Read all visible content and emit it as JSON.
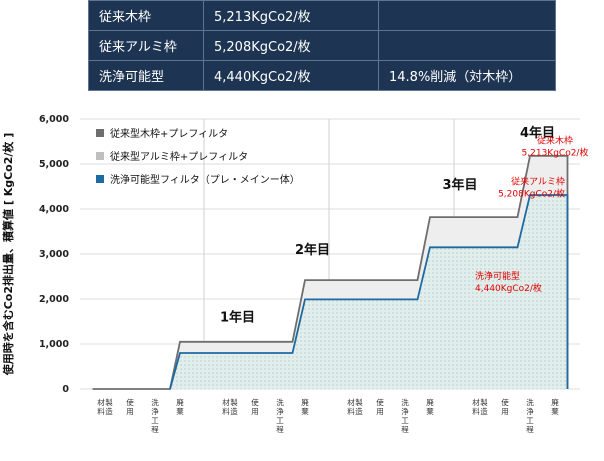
{
  "table": {
    "rows": [
      {
        "label": "従来木枠",
        "value": "5,213KgCo2/枚",
        "note": ""
      },
      {
        "label": "従来アルミ枠",
        "value": "5,208KgCo2/枚",
        "note": ""
      },
      {
        "label": "洗浄可能型",
        "value": "4,440KgCo2/枚",
        "note": "14.8%削減（対木枠）"
      }
    ]
  },
  "chart_data": {
    "type": "area",
    "ylabel": "使用時を含むCo2排出量、積算値 [ KgCo2/枚 ]",
    "ylim": [
      0,
      6000
    ],
    "y_ticks": [
      0,
      1000,
      2000,
      3000,
      4000,
      5000,
      6000
    ],
    "y_tick_labels": [
      "0",
      "1,000",
      "2,000",
      "3,000",
      "4,000",
      "5,000",
      "6,000"
    ],
    "grid": true,
    "legend_position": "top-left",
    "categories": [
      "材料\n製造",
      "使用",
      "洗浄工程",
      "廃棄",
      "材料\n製造",
      "使用",
      "洗浄工程",
      "廃棄",
      "材料\n製造",
      "使用",
      "洗浄工程",
      "廃棄",
      "材料\n製造",
      "使用",
      "洗浄工程",
      "廃棄"
    ],
    "year_labels": [
      "1年目",
      "2年目",
      "3年目",
      "4年目"
    ],
    "series": [
      {
        "name": "従来型木枠+プレフィルタ",
        "color": "#6e6e6e",
        "fill": "#eeeeee",
        "points": [
          [
            0.5,
            0
          ],
          [
            1.5,
            0
          ],
          [
            2.5,
            0
          ],
          [
            3.5,
            0
          ],
          [
            3.6,
            0
          ],
          [
            4.0,
            1050
          ],
          [
            5.5,
            1050
          ],
          [
            8.5,
            1050
          ],
          [
            9.0,
            2420
          ],
          [
            11.5,
            2420
          ],
          [
            13.5,
            2420
          ],
          [
            14.0,
            3820
          ],
          [
            17.5,
            3820
          ],
          [
            18.0,
            5180
          ],
          [
            19.5,
            5180
          ],
          [
            19.5,
            0
          ]
        ]
      },
      {
        "name": "従来型アルミ枠+プレフィルタ",
        "color": "#bfbfbf",
        "fill": "#eeeeee",
        "points": []
      },
      {
        "name": "洗浄可能型フィルタ（プレ・メインー体）",
        "color": "#1e6aa2",
        "fill": "#e1eeec",
        "points": [
          [
            3.6,
            0
          ],
          [
            4.0,
            800
          ],
          [
            8.5,
            800
          ],
          [
            9.0,
            1990
          ],
          [
            11.5,
            1990
          ],
          [
            13.5,
            1990
          ],
          [
            14.0,
            3150
          ],
          [
            17.5,
            3150
          ],
          [
            18.0,
            4310
          ],
          [
            19.5,
            4310
          ],
          [
            19.5,
            0
          ]
        ]
      }
    ],
    "annotations": [
      {
        "text": "従来木枠",
        "text2": "5,213KgCo2/枚",
        "color": "#e00000"
      },
      {
        "text": "従来アルミ枠",
        "text2": "5,208KgCo2/枚",
        "color": "#e00000"
      },
      {
        "text": "洗浄可能型",
        "text2": "4,440KgCo2/枚",
        "color": "#e00000"
      }
    ]
  }
}
